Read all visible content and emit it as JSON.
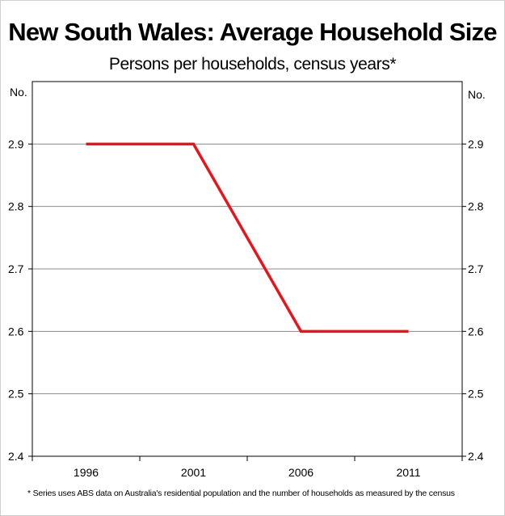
{
  "chart_data": {
    "type": "line",
    "title": "New South Wales: Average Household Size",
    "subtitle": "Persons per households, census years*",
    "ylabel_left": "No.",
    "ylabel_right": "No.",
    "categories": [
      "1996",
      "2001",
      "2006",
      "2011"
    ],
    "series": [
      {
        "values": [
          2.9,
          2.9,
          2.6,
          2.6
        ],
        "color": "#e8141b"
      }
    ],
    "ylim": [
      2.4,
      3.0
    ],
    "yticks": [
      "2.4",
      "2.5",
      "2.6",
      "2.7",
      "2.8",
      "2.9"
    ],
    "grid": true,
    "footnote": "* Series uses ABS data on Australia's residential population and the number of households as measured by the census"
  }
}
